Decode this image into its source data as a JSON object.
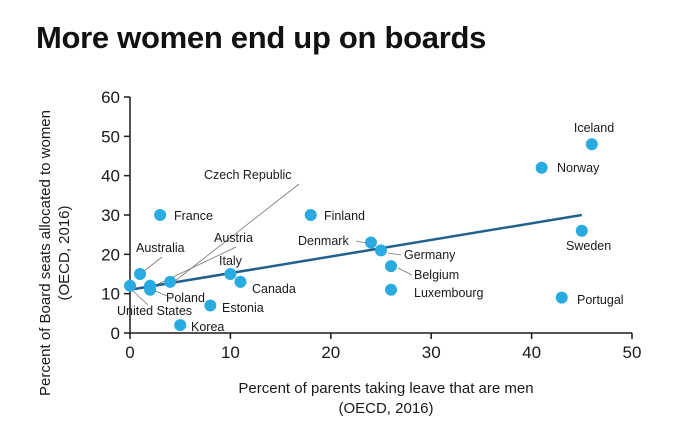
{
  "title": "More women end up on boards",
  "colors": {
    "point": "#29abe2",
    "trend": "#21618c",
    "axis": "#1a1a1a",
    "leader": "#777777"
  },
  "chart_data": {
    "type": "scatter",
    "title": "More women end up on boards",
    "xlabel_line1": "Percent of parents taking leave that are men",
    "xlabel_line2": "(OECD, 2016)",
    "ylabel_line1": "Percent of Board seats allocated to women",
    "ylabel_line2": "(OECD, 2016)",
    "xlim": [
      0,
      50
    ],
    "ylim": [
      0,
      60
    ],
    "xticks": [
      0,
      10,
      20,
      30,
      40,
      50
    ],
    "yticks": [
      0,
      10,
      20,
      30,
      40,
      50,
      60
    ],
    "points": [
      {
        "label": "Iceland",
        "x": 46,
        "y": 48
      },
      {
        "label": "Norway",
        "x": 41,
        "y": 42
      },
      {
        "label": "Sweden",
        "x": 45,
        "y": 26
      },
      {
        "label": "Portugal",
        "x": 43,
        "y": 9
      },
      {
        "label": "France",
        "x": 3,
        "y": 30
      },
      {
        "label": "Finland",
        "x": 18,
        "y": 30
      },
      {
        "label": "Denmark",
        "x": 24,
        "y": 23
      },
      {
        "label": "Germany",
        "x": 25,
        "y": 21
      },
      {
        "label": "Belgium",
        "x": 26,
        "y": 17
      },
      {
        "label": "Luxembourg",
        "x": 26,
        "y": 11
      },
      {
        "label": "Italy",
        "x": 10,
        "y": 15
      },
      {
        "label": "Canada",
        "x": 11,
        "y": 13
      },
      {
        "label": "Estonia",
        "x": 8,
        "y": 7
      },
      {
        "label": "Korea",
        "x": 5,
        "y": 2
      },
      {
        "label": "Czech Republic",
        "x": 4,
        "y": 13
      },
      {
        "label": "Austria",
        "x": 2,
        "y": 12
      },
      {
        "label": "Australia",
        "x": 1,
        "y": 15
      },
      {
        "label": "Poland",
        "x": 2,
        "y": 11
      },
      {
        "label": "United States",
        "x": 0,
        "y": 12
      }
    ],
    "trendline": {
      "x": [
        0,
        45
      ],
      "y": [
        11,
        30
      ]
    }
  }
}
